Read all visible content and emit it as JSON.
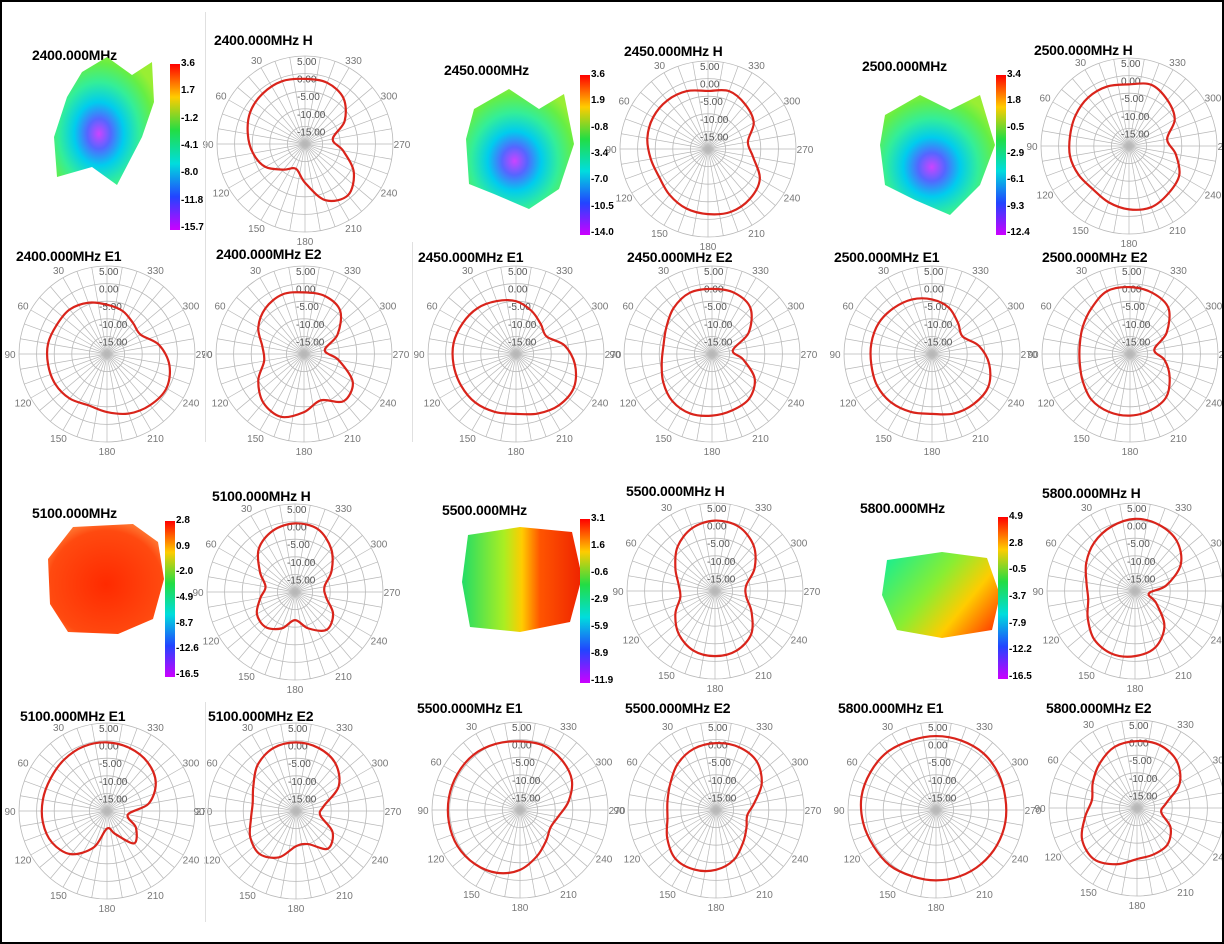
{
  "rings": [
    "5.00",
    "0.00",
    "-5.00",
    "-10.00",
    "-15.00"
  ],
  "angles": [
    "330",
    "300",
    "270",
    "240",
    "210",
    "180",
    "150",
    "120",
    "90",
    "60",
    "30"
  ],
  "chart_data": [
    {
      "type": "surface-3d",
      "title": "2400.000MHz",
      "colorscale": [
        "3.6",
        "1.7",
        "-1.2",
        "-4.1",
        "-8.0",
        "-11.8",
        "-15.7"
      ],
      "colors": [
        "#ff0000",
        "#ffcc00",
        "#22dd44",
        "#00dddd",
        "#2244ff",
        "#cc00ff"
      ]
    },
    {
      "type": "polar",
      "title": "2400.000MHz  H",
      "rlim": [
        -20,
        5
      ],
      "theta": [
        0,
        20,
        40,
        60,
        80,
        100,
        120,
        140,
        160,
        180,
        200,
        220,
        240,
        260,
        280,
        300,
        320,
        340
      ],
      "r": [
        -1.5,
        -1.0,
        -1.3,
        -2.0,
        -3.5,
        -5.0,
        -7.0,
        -10.5,
        -12.5,
        -9.0,
        -3.0,
        -1.0,
        -4.0,
        -9.0,
        -12.0,
        -7.0,
        -3.0,
        -1.5
      ]
    },
    {
      "type": "surface-3d",
      "title": "2450.000MHz",
      "colorscale": [
        "3.6",
        "1.9",
        "-0.8",
        "-3.4",
        "-7.0",
        "-10.5",
        "-14.0"
      ],
      "colors": [
        "#ff0000",
        "#ffcc00",
        "#22dd44",
        "#00dddd",
        "#2244ff",
        "#cc00ff"
      ]
    },
    {
      "type": "polar",
      "title": "2450.000MHz  H",
      "rlim": [
        -20,
        5
      ],
      "theta": [
        0,
        20,
        40,
        60,
        80,
        100,
        120,
        140,
        160,
        180,
        200,
        220,
        240,
        260,
        280,
        300,
        320,
        340
      ],
      "r": [
        -3.5,
        -2.5,
        -2.0,
        -2.0,
        -2.5,
        -3.5,
        -4.0,
        -3.0,
        -2.0,
        -1.5,
        -1.0,
        -1.5,
        -3.0,
        -7.0,
        -8.5,
        -5.0,
        -3.5,
        -2.5
      ]
    },
    {
      "type": "surface-3d",
      "title": "2500.000MHz",
      "colorscale": [
        "3.4",
        "1.8",
        "-0.5",
        "-2.9",
        "-6.1",
        "-9.3",
        "-12.4"
      ],
      "colors": [
        "#ff0000",
        "#ffcc00",
        "#22dd44",
        "#00dddd",
        "#2244ff",
        "#cc00ff"
      ]
    },
    {
      "type": "polar",
      "title": "2500.000MHz  H",
      "rlim": [
        -20,
        5
      ],
      "theta": [
        0,
        20,
        40,
        60,
        80,
        100,
        120,
        140,
        160,
        180,
        200,
        220,
        240,
        260,
        280,
        300,
        320,
        340
      ],
      "r": [
        -2.5,
        -2.0,
        -2.0,
        -2.5,
        -3.0,
        -3.0,
        -3.5,
        -4.0,
        -3.0,
        -2.0,
        -1.5,
        -2.5,
        -3.5,
        -6.5,
        -9.0,
        -5.0,
        -3.0,
        -1.5
      ]
    },
    {
      "type": "polar",
      "title": "2400.000MHz  E1",
      "rlim": [
        -20,
        5
      ],
      "theta": [
        0,
        20,
        40,
        60,
        80,
        100,
        120,
        140,
        160,
        180,
        200,
        220,
        240,
        260,
        280,
        300,
        320,
        340
      ],
      "r": [
        -6.0,
        -4.5,
        -3.5,
        -3.5,
        -3.0,
        -3.0,
        -3.0,
        -3.5,
        -4.5,
        -3.5,
        -2.0,
        -1.0,
        -0.5,
        -2.0,
        -5.0,
        -9.0,
        -8.5,
        -7.0
      ]
    },
    {
      "type": "polar",
      "title": "2400.000MHz  E2",
      "rlim": [
        -20,
        5
      ],
      "theta": [
        0,
        20,
        40,
        60,
        80,
        100,
        120,
        140,
        160,
        180,
        200,
        220,
        240,
        260,
        280,
        300,
        320,
        340
      ],
      "r": [
        -2.5,
        -2.0,
        -3.0,
        -5.0,
        -8.0,
        -8.5,
        -5.0,
        -2.0,
        -1.0,
        -3.5,
        -6.0,
        -2.5,
        -4.0,
        -10.0,
        -14.0,
        -9.0,
        -4.0,
        -2.5
      ]
    },
    {
      "type": "polar",
      "title": "2450.000MHz  E1",
      "rlim": [
        -20,
        5
      ],
      "theta": [
        0,
        20,
        40,
        60,
        80,
        100,
        120,
        140,
        160,
        180,
        200,
        220,
        240,
        260,
        280,
        300,
        320,
        340
      ],
      "r": [
        -5.0,
        -4.0,
        -3.0,
        -2.5,
        -2.0,
        -2.0,
        -2.0,
        -2.0,
        -2.5,
        -3.0,
        -2.0,
        -1.0,
        -1.0,
        -3.0,
        -6.0,
        -10.0,
        -9.0,
        -7.0
      ]
    },
    {
      "type": "polar",
      "title": "2450.000MHz  E2",
      "rlim": [
        -20,
        5
      ],
      "theta": [
        0,
        20,
        40,
        60,
        80,
        100,
        120,
        140,
        160,
        180,
        200,
        220,
        240,
        260,
        280,
        300,
        320,
        340
      ],
      "r": [
        -1.5,
        -1.5,
        -3.0,
        -5.0,
        -6.0,
        -5.5,
        -4.0,
        -2.5,
        -2.0,
        -2.5,
        -3.0,
        -3.5,
        -6.0,
        -11.0,
        -14.0,
        -8.0,
        -3.0,
        -1.5
      ]
    },
    {
      "type": "polar",
      "title": "2500.000MHz  E1",
      "rlim": [
        -20,
        5
      ],
      "theta": [
        0,
        20,
        40,
        60,
        80,
        100,
        120,
        140,
        160,
        180,
        200,
        220,
        240,
        260,
        280,
        300,
        320,
        340
      ],
      "r": [
        -4.5,
        -3.5,
        -3.0,
        -2.5,
        -2.5,
        -2.5,
        -2.0,
        -2.0,
        -2.5,
        -3.0,
        -2.0,
        -1.5,
        -1.5,
        -3.5,
        -6.5,
        -10.0,
        -8.5,
        -6.0
      ]
    },
    {
      "type": "polar",
      "title": "2500.000MHz  E2",
      "rlim": [
        -20,
        5
      ],
      "theta": [
        0,
        20,
        40,
        60,
        80,
        100,
        120,
        140,
        160,
        180,
        200,
        220,
        240,
        260,
        280,
        300,
        320,
        340
      ],
      "r": [
        -1.0,
        -1.0,
        -3.0,
        -4.5,
        -5.5,
        -5.5,
        -4.5,
        -3.0,
        -2.5,
        -2.5,
        -3.0,
        -4.0,
        -7.0,
        -10.0,
        -13.0,
        -8.0,
        -3.0,
        -1.5
      ]
    },
    {
      "type": "surface-3d",
      "title": "5100.000MHz",
      "colorscale": [
        "2.8",
        "0.9",
        "-2.0",
        "-4.9",
        "-8.7",
        "-12.6",
        "-16.5"
      ],
      "colors": [
        "#ff0000",
        "#ffcc00",
        "#22dd44",
        "#00dddd",
        "#2244ff",
        "#cc00ff"
      ]
    },
    {
      "type": "polar",
      "title": "5100.000MHz  H",
      "rlim": [
        -20,
        5
      ],
      "theta": [
        0,
        20,
        40,
        60,
        80,
        100,
        120,
        140,
        160,
        180,
        200,
        220,
        240,
        260,
        280,
        300,
        320,
        340
      ],
      "r": [
        -0.5,
        -1.5,
        -4.0,
        -8.5,
        -11.5,
        -10.0,
        -7.5,
        -7.0,
        -9.0,
        -12.0,
        -9.0,
        -6.0,
        -7.5,
        -11.0,
        -11.5,
        -8.0,
        -4.0,
        -1.0
      ]
    },
    {
      "type": "surface-3d",
      "title": "5500.000MHz",
      "colorscale": [
        "3.1",
        "1.6",
        "-0.6",
        "-2.9",
        "-5.9",
        "-8.9",
        "-11.9"
      ],
      "colors": [
        "#ff0000",
        "#ffcc00",
        "#22dd44",
        "#00dddd",
        "#2244ff",
        "#cc00ff"
      ]
    },
    {
      "type": "polar",
      "title": "5500.000MHz  H",
      "rlim": [
        -20,
        5
      ],
      "theta": [
        0,
        20,
        40,
        60,
        80,
        100,
        120,
        140,
        160,
        180,
        200,
        220,
        240,
        260,
        280,
        300,
        320,
        340
      ],
      "r": [
        0.0,
        -1.0,
        -3.5,
        -7.0,
        -9.5,
        -10.0,
        -7.0,
        -4.0,
        -2.0,
        -1.5,
        -2.0,
        -4.0,
        -8.0,
        -11.0,
        -11.0,
        -7.0,
        -3.0,
        -0.5
      ]
    },
    {
      "type": "surface-3d",
      "title": "5800.000MHz",
      "colorscale": [
        "4.9",
        "2.8",
        "-0.5",
        "-3.7",
        "-7.9",
        "-12.2",
        "-16.5"
      ],
      "colors": [
        "#ff0000",
        "#ffcc00",
        "#22dd44",
        "#00dddd",
        "#2244ff",
        "#cc00ff"
      ]
    },
    {
      "type": "polar",
      "title": "5800.000MHz  H",
      "rlim": [
        -20,
        5
      ],
      "theta": [
        0,
        20,
        40,
        60,
        80,
        100,
        120,
        140,
        160,
        180,
        200,
        220,
        240,
        260,
        280,
        300,
        320,
        340
      ],
      "r": [
        0.5,
        -0.5,
        -2.0,
        -4.0,
        -6.0,
        -6.5,
        -4.5,
        -2.0,
        -1.0,
        -1.5,
        -3.0,
        -7.0,
        -13.0,
        -16.0,
        -11.0,
        -5.0,
        -1.5,
        0.0
      ]
    },
    {
      "type": "polar",
      "title": "5100.000MHz  E1",
      "rlim": [
        -20,
        5
      ],
      "theta": [
        0,
        20,
        40,
        60,
        80,
        100,
        120,
        140,
        160,
        180,
        200,
        220,
        240,
        260,
        280,
        300,
        320,
        340
      ],
      "r": [
        -0.5,
        -0.5,
        -1.0,
        -1.5,
        -1.5,
        -1.5,
        -2.0,
        -4.0,
        -9.0,
        -15.0,
        -13.0,
        -8.0,
        -10.5,
        -14.0,
        -8.0,
        -4.0,
        -2.0,
        -1.0
      ]
    },
    {
      "type": "polar",
      "title": "5100.000MHz  E2",
      "rlim": [
        -20,
        5
      ],
      "theta": [
        0,
        20,
        40,
        60,
        80,
        100,
        120,
        140,
        160,
        180,
        200,
        220,
        240,
        260,
        280,
        300,
        320,
        340
      ],
      "r": [
        -0.5,
        -1.0,
        -3.0,
        -6.0,
        -7.5,
        -7.0,
        -5.0,
        -4.0,
        -6.0,
        -10.0,
        -10.0,
        -6.0,
        -8.0,
        -13.0,
        -12.0,
        -6.0,
        -2.5,
        -1.0
      ]
    },
    {
      "type": "polar",
      "title": "5500.000MHz  E1",
      "rlim": [
        -20,
        5
      ],
      "theta": [
        0,
        20,
        40,
        60,
        80,
        100,
        120,
        140,
        160,
        180,
        200,
        220,
        240,
        260,
        280,
        300,
        320,
        340
      ],
      "r": [
        -0.5,
        0.0,
        0.5,
        0.5,
        0.5,
        0.5,
        0.5,
        0.0,
        -1.0,
        -3.0,
        -6.0,
        -8.5,
        -10.0,
        -9.0,
        -6.0,
        -3.0,
        -1.5,
        -0.5
      ]
    },
    {
      "type": "polar",
      "title": "5500.000MHz  E2",
      "rlim": [
        -20,
        5
      ],
      "theta": [
        0,
        20,
        40,
        60,
        80,
        100,
        120,
        140,
        160,
        180,
        200,
        220,
        240,
        260,
        280,
        300,
        320,
        340
      ],
      "r": [
        -1.0,
        -1.5,
        -3.0,
        -5.0,
        -6.0,
        -6.0,
        -4.0,
        -2.0,
        -2.0,
        -3.0,
        -5.0,
        -8.0,
        -10.0,
        -11.0,
        -9.0,
        -5.0,
        -2.0,
        -1.0
      ]
    },
    {
      "type": "polar",
      "title": "5800.000MHz  E1",
      "rlim": [
        -20,
        5
      ],
      "theta": [
        0,
        20,
        40,
        60,
        80,
        100,
        120,
        140,
        160,
        180,
        200,
        220,
        240,
        260,
        280,
        300,
        320,
        340
      ],
      "r": [
        1.0,
        1.0,
        1.5,
        1.5,
        1.5,
        1.0,
        0.5,
        0.5,
        0.0,
        0.0,
        0.0,
        0.0,
        0.0,
        0.0,
        0.0,
        0.5,
        1.0,
        1.0
      ]
    },
    {
      "type": "polar",
      "title": "5800.000MHz  E2",
      "rlim": [
        -20,
        5
      ],
      "theta": [
        0,
        20,
        40,
        60,
        80,
        100,
        120,
        140,
        160,
        180,
        200,
        220,
        240,
        260,
        280,
        300,
        320,
        340
      ],
      "r": [
        -1.0,
        -1.5,
        -3.5,
        -5.5,
        -7.0,
        -5.0,
        -2.0,
        -1.0,
        -3.0,
        -5.5,
        -6.0,
        -6.5,
        -9.0,
        -13.0,
        -11.5,
        -6.0,
        -2.5,
        -1.0
      ]
    }
  ]
}
